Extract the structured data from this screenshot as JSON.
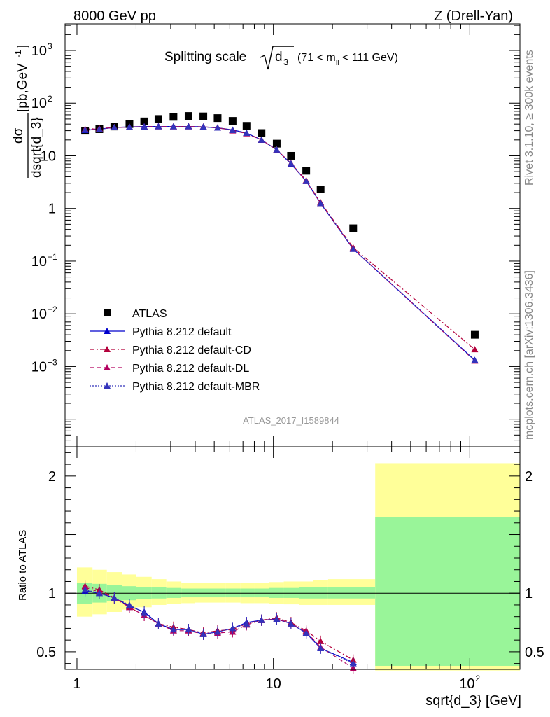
{
  "header": {
    "left": "8000 GeV pp",
    "right": "Z (Drell-Yan)"
  },
  "side": {
    "top": "Rivet 3.1.10, ≥ 300k events",
    "bottom": "mcplots.cern.ch [arXiv:1306.3436]"
  },
  "analysis_tag": "ATLAS_2017_I1589844",
  "chart_data": [
    {
      "type": "scatter",
      "title": "Splitting scale √d₃ (71 < mₗₗ < 111 GeV)",
      "title_main": "Splitting scale",
      "title_sym": "d",
      "title_sub": "3",
      "title_range": "(71 < m",
      "title_range_sub": "ll",
      "title_range_end": " < 111 GeV)",
      "ylabel_num": "dσ",
      "ylabel_den": "dsqrt{d_3}",
      "ylabel_units": "[pb,GeV",
      "ylabel_units_exp": "-1",
      "ylabel_units_end": "]",
      "xscale": "log",
      "yscale": "log",
      "xlim": [
        0.87,
        180
      ],
      "ylim": [
        3e-05,
        3200
      ],
      "ytick_labels": [
        {
          "v": 0.001,
          "base": "10",
          "exp": "−3"
        },
        {
          "v": 0.01,
          "base": "10",
          "exp": "−2"
        },
        {
          "v": 0.1,
          "base": "10",
          "exp": "−1"
        },
        {
          "v": 1,
          "base": "1",
          "exp": ""
        },
        {
          "v": 10,
          "base": "10",
          "exp": ""
        },
        {
          "v": 100,
          "base": "10",
          "exp": "2"
        },
        {
          "v": 1000,
          "base": "10",
          "exp": "3"
        }
      ],
      "legend_position": "bottom-left",
      "series": [
        {
          "name": "ATLAS",
          "color": "#000000",
          "marker": "square",
          "line": "none",
          "x": [
            1.1,
            1.3,
            1.55,
            1.85,
            2.2,
            2.6,
            3.1,
            3.7,
            4.4,
            5.2,
            6.2,
            7.3,
            8.7,
            10.4,
            12.3,
            14.7,
            17.4,
            25.5,
            106
          ],
          "y": [
            30,
            32,
            36,
            40,
            45,
            50,
            55,
            57,
            56,
            52,
            46,
            37,
            27,
            17,
            10,
            5.2,
            2.3,
            0.42,
            0.004
          ]
        },
        {
          "name": "Pythia 8.212 default",
          "color": "#0000cc",
          "marker": "triangle",
          "line": "solid",
          "x": [
            1.1,
            1.3,
            1.55,
            1.85,
            2.2,
            2.6,
            3.1,
            3.7,
            4.4,
            5.2,
            6.2,
            7.3,
            8.7,
            10.4,
            12.3,
            14.7,
            17.4,
            25.5,
            106
          ],
          "y": [
            30.5,
            32,
            34.5,
            35.5,
            36,
            36,
            36,
            36,
            35.5,
            34,
            31,
            27,
            20,
            13,
            7.0,
            3.3,
            1.25,
            0.17,
            0.00132
          ]
        },
        {
          "name": "Pythia 8.212 default-CD",
          "color": "#b3003b",
          "marker": "triangle",
          "line": "dashdot",
          "x": [
            1.1,
            1.3,
            1.55,
            1.85,
            2.2,
            2.6,
            3.1,
            3.7,
            4.4,
            5.2,
            6.2,
            7.3,
            8.7,
            10.4,
            12.3,
            14.7,
            17.4,
            25.5,
            106
          ],
          "y": [
            32,
            33,
            34.5,
            35,
            35.5,
            36,
            36,
            36,
            35.5,
            34,
            30.5,
            26.5,
            20,
            13,
            7.2,
            3.4,
            1.3,
            0.18,
            0.0021
          ]
        },
        {
          "name": "Pythia 8.212 default-DL",
          "color": "#b3005f",
          "marker": "triangle",
          "line": "dashed",
          "x": [
            1.1,
            1.3,
            1.55,
            1.85,
            2.2,
            2.6,
            3.1,
            3.7,
            4.4,
            5.2,
            6.2,
            7.3,
            8.7,
            10.4,
            12.3,
            14.7,
            17.4,
            25.5,
            106
          ],
          "y": [
            31.5,
            32.5,
            34.5,
            35,
            35.5,
            36,
            36,
            36,
            35.5,
            34,
            30,
            26.5,
            20,
            13,
            7.1,
            3.3,
            1.25,
            0.17,
            0.00128
          ]
        },
        {
          "name": "Pythia 8.212 default-MBR",
          "color": "#3333bb",
          "marker": "triangle",
          "line": "dotted",
          "x": [
            1.1,
            1.3,
            1.55,
            1.85,
            2.2,
            2.6,
            3.1,
            3.7,
            4.4,
            5.2,
            6.2,
            7.3,
            8.7,
            10.4,
            12.3,
            14.7,
            17.4,
            25.5,
            106
          ],
          "y": [
            31,
            32,
            34.5,
            35,
            35.5,
            36,
            36,
            36,
            35.5,
            34,
            30.5,
            27,
            20,
            13,
            7.1,
            3.3,
            1.25,
            0.17,
            0.0013
          ]
        }
      ]
    },
    {
      "type": "line",
      "ylabel": "Ratio to ATLAS",
      "xlabel": "sqrt{d_3} [GeV]",
      "xscale": "log",
      "xlim": [
        0.87,
        180
      ],
      "ylim": [
        0.35,
        2.25
      ],
      "yticks": [
        0.5,
        1,
        2
      ],
      "ytick_labels": [
        "0.5",
        "1",
        "2"
      ],
      "xtick_labels": [
        {
          "v": 1,
          "base": "1",
          "exp": ""
        },
        {
          "v": 10,
          "base": "10",
          "exp": ""
        },
        {
          "v": 100,
          "base": "10",
          "exp": "2"
        }
      ],
      "bands": {
        "bin_edges": [
          1.0,
          1.2,
          1.42,
          1.7,
          2.0,
          2.4,
          2.85,
          3.4,
          4.0,
          4.8,
          5.7,
          6.8,
          8.0,
          9.5,
          11.3,
          13.5,
          16.0,
          19.0,
          33.0,
          180
        ],
        "stat_lo": [
          0.91,
          0.92,
          0.93,
          0.94,
          0.95,
          0.955,
          0.96,
          0.965,
          0.965,
          0.965,
          0.965,
          0.965,
          0.965,
          0.96,
          0.96,
          0.955,
          0.955,
          0.955,
          0.38
        ],
        "stat_hi": [
          1.09,
          1.08,
          1.07,
          1.06,
          1.055,
          1.05,
          1.045,
          1.04,
          1.04,
          1.04,
          1.04,
          1.04,
          1.04,
          1.045,
          1.045,
          1.05,
          1.05,
          1.05,
          1.65
        ],
        "tot_lo": [
          0.8,
          0.82,
          0.84,
          0.86,
          0.88,
          0.9,
          0.91,
          0.915,
          0.92,
          0.92,
          0.92,
          0.915,
          0.915,
          0.91,
          0.905,
          0.9,
          0.9,
          0.9,
          0.34
        ],
        "tot_hi": [
          1.22,
          1.2,
          1.18,
          1.16,
          1.14,
          1.12,
          1.1,
          1.09,
          1.085,
          1.085,
          1.085,
          1.09,
          1.09,
          1.095,
          1.1,
          1.1,
          1.11,
          1.12,
          2.11
        ]
      },
      "series": [
        {
          "name": "Pythia 8.212 default",
          "color": "#0000cc",
          "line": "solid",
          "x": [
            1.1,
            1.3,
            1.55,
            1.85,
            2.2,
            2.6,
            3.1,
            3.7,
            4.4,
            5.2,
            6.2,
            7.3,
            8.7,
            10.4,
            12.3,
            14.7,
            17.4,
            25.5
          ],
          "y": [
            1.02,
            1.0,
            0.96,
            0.89,
            0.84,
            0.74,
            0.69,
            0.69,
            0.65,
            0.67,
            0.7,
            0.75,
            0.77,
            0.78,
            0.74,
            0.66,
            0.53,
            0.41
          ]
        },
        {
          "name": "Pythia 8.212 default-CD",
          "color": "#b3003b",
          "line": "dashdot",
          "x": [
            1.1,
            1.3,
            1.55,
            1.85,
            2.2,
            2.6,
            3.1,
            3.7,
            4.4,
            5.2,
            6.2,
            7.3,
            8.7,
            10.4,
            12.3,
            14.7,
            17.4,
            25.5
          ],
          "y": [
            1.06,
            1.03,
            0.96,
            0.88,
            0.81,
            0.74,
            0.71,
            0.69,
            0.66,
            0.68,
            0.69,
            0.74,
            0.77,
            0.79,
            0.75,
            0.68,
            0.59,
            0.43
          ]
        },
        {
          "name": "Pythia 8.212 default-DL",
          "color": "#b3005f",
          "line": "dashed",
          "x": [
            1.1,
            1.3,
            1.55,
            1.85,
            2.2,
            2.6,
            3.1,
            3.7,
            4.4,
            5.2,
            6.2,
            7.3,
            8.7,
            10.4,
            12.3,
            14.7,
            17.4,
            25.5
          ],
          "y": [
            1.05,
            1.01,
            0.96,
            0.88,
            0.81,
            0.74,
            0.68,
            0.68,
            0.65,
            0.66,
            0.67,
            0.73,
            0.77,
            0.78,
            0.74,
            0.67,
            0.54,
            0.36
          ]
        },
        {
          "name": "Pythia 8.212 default-MBR",
          "color": "#3333bb",
          "line": "dotted",
          "x": [
            1.1,
            1.3,
            1.55,
            1.85,
            2.2,
            2.6,
            3.1,
            3.7,
            4.4,
            5.2,
            6.2,
            7.3,
            8.7,
            10.4,
            12.3,
            14.7,
            17.4,
            25.5
          ],
          "y": [
            1.03,
            1.0,
            0.96,
            0.9,
            0.83,
            0.74,
            0.69,
            0.69,
            0.65,
            0.67,
            0.7,
            0.74,
            0.77,
            0.78,
            0.74,
            0.66,
            0.53,
            0.4
          ]
        }
      ]
    }
  ]
}
